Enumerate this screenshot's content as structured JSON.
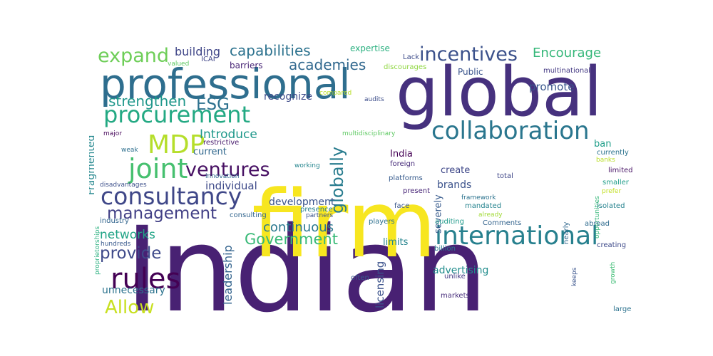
{
  "words": [
    {
      "text": "Indian",
      "color": "#482173",
      "rotate": false
    },
    {
      "text": "firm",
      "color": "#f7e620",
      "rotate": false
    },
    {
      "text": "global",
      "color": "#46317e",
      "rotate": false
    },
    {
      "text": "professional",
      "color": "#2e6e8e",
      "rotate": false
    },
    {
      "text": "international",
      "color": "#27808e",
      "rotate": false
    },
    {
      "text": "consultancy",
      "color": "#3f4788",
      "rotate": false
    },
    {
      "text": "collaboration",
      "color": "#2a768e",
      "rotate": false
    },
    {
      "text": "procurement",
      "color": "#23a983",
      "rotate": false
    },
    {
      "text": "joint",
      "color": "#46c06f",
      "rotate": false
    },
    {
      "text": "rules",
      "color": "#440154",
      "rotate": false
    },
    {
      "text": "MDP",
      "color": "#b5de2b",
      "rotate": false
    },
    {
      "text": "incentives",
      "color": "#3b518b",
      "rotate": false
    },
    {
      "text": "expand",
      "color": "#6ece58",
      "rotate": false
    },
    {
      "text": "management",
      "color": "#424086",
      "rotate": false
    },
    {
      "text": "Government",
      "color": "#38b977",
      "rotate": false
    },
    {
      "text": "ventures",
      "color": "#471063",
      "rotate": false
    },
    {
      "text": "globally",
      "color": "#287c8e",
      "rotate": true
    },
    {
      "text": "ESG",
      "color": "#2d718e",
      "rotate": false
    },
    {
      "text": "provide",
      "color": "#3e4989",
      "rotate": false
    },
    {
      "text": "Allow",
      "color": "#c8e020",
      "rotate": false
    },
    {
      "text": "strengthen",
      "color": "#1f978b",
      "rotate": false
    },
    {
      "text": "capabilities",
      "color": "#2c728e",
      "rotate": false
    },
    {
      "text": "academies",
      "color": "#31688e",
      "rotate": false
    },
    {
      "text": "Encourage",
      "color": "#35b779",
      "rotate": false
    },
    {
      "text": "continuous",
      "color": "#2a788e",
      "rotate": false
    },
    {
      "text": "leadership",
      "color": "#33638d",
      "rotate": true
    },
    {
      "text": "networks",
      "color": "#20a486",
      "rotate": false
    },
    {
      "text": "Introduce",
      "color": "#1f988b",
      "rotate": false
    },
    {
      "text": "individual",
      "color": "#3e4a89",
      "rotate": false
    },
    {
      "text": "building",
      "color": "#404688",
      "rotate": false
    },
    {
      "text": "promote",
      "color": "#39568c",
      "rotate": false
    },
    {
      "text": "Fragmented",
      "color": "#24878e",
      "rotate": true
    },
    {
      "text": "advertising",
      "color": "#228d8d",
      "rotate": false
    },
    {
      "text": "licensing",
      "color": "#3b528b",
      "rotate": true
    },
    {
      "text": "development",
      "color": "#3a538b",
      "rotate": false
    },
    {
      "text": "recognize",
      "color": "#3e4c8a",
      "rotate": false
    },
    {
      "text": "unnecessary",
      "color": "#2c738e",
      "rotate": false
    },
    {
      "text": "India",
      "color": "#440154",
      "rotate": false
    },
    {
      "text": "brands",
      "color": "#3b528b",
      "rotate": false
    },
    {
      "text": "create",
      "color": "#3f4889",
      "rotate": false
    },
    {
      "text": "limits",
      "color": "#25848e",
      "rotate": false
    },
    {
      "text": "severely",
      "color": "#375a8c",
      "rotate": true
    },
    {
      "text": "current",
      "color": "#31688e",
      "rotate": false
    },
    {
      "text": "barriers",
      "color": "#482576",
      "rotate": false
    },
    {
      "text": "expertise",
      "color": "#2ab07f",
      "rotate": false
    },
    {
      "text": "Public",
      "color": "#3a548c",
      "rotate": false
    },
    {
      "text": "ban",
      "color": "#1f9e89",
      "rotate": false
    },
    {
      "text": "Lack",
      "color": "#3e4c8a",
      "rotate": false
    },
    {
      "text": "ICAI",
      "color": "#404588",
      "rotate": false
    },
    {
      "text": "valued",
      "color": "#5ec962",
      "rotate": false
    },
    {
      "text": "discourages",
      "color": "#90d743",
      "rotate": false
    },
    {
      "text": "multinational",
      "color": "#443983",
      "rotate": false
    },
    {
      "text": "compared",
      "color": "#b8de29",
      "rotate": false
    },
    {
      "text": "audits",
      "color": "#3d4e8a",
      "rotate": false
    },
    {
      "text": "multidisciplinary",
      "color": "#5ec962",
      "rotate": false
    },
    {
      "text": "restrictive",
      "color": "#481b6d",
      "rotate": false
    },
    {
      "text": "major",
      "color": "#46075a",
      "rotate": false
    },
    {
      "text": "weak",
      "color": "#2e6f8e",
      "rotate": false
    },
    {
      "text": "innovation",
      "color": "#30698e",
      "rotate": false
    },
    {
      "text": "working",
      "color": "#25858e",
      "rotate": false
    },
    {
      "text": "foreign",
      "color": "#472c7a",
      "rotate": false
    },
    {
      "text": "platforms",
      "color": "#375b8d",
      "rotate": false
    },
    {
      "text": "total",
      "color": "#3f4788",
      "rotate": false
    },
    {
      "text": "disadvantages",
      "color": "#3c4f8a",
      "rotate": false
    },
    {
      "text": "currently",
      "color": "#2c738e",
      "rotate": false
    },
    {
      "text": "banks",
      "color": "#bade28",
      "rotate": false
    },
    {
      "text": "limited",
      "color": "#471365",
      "rotate": false
    },
    {
      "text": "smaller",
      "color": "#1f9e89",
      "rotate": false
    },
    {
      "text": "prefer",
      "color": "#c2df23",
      "rotate": false
    },
    {
      "text": "present",
      "color": "#482677",
      "rotate": false
    },
    {
      "text": "framework",
      "color": "#2c738e",
      "rotate": false
    },
    {
      "text": "consulting",
      "color": "#32658e",
      "rotate": false
    },
    {
      "text": "presence",
      "color": "#27808e",
      "rotate": false
    },
    {
      "text": "partners",
      "color": "#3a548c",
      "rotate": false
    },
    {
      "text": "mandated",
      "color": "#25838e",
      "rotate": false
    },
    {
      "text": "face",
      "color": "#39558c",
      "rotate": false
    },
    {
      "text": "already",
      "color": "#a2da37",
      "rotate": false
    },
    {
      "text": "opportunities",
      "color": "#35b779",
      "rotate": true
    },
    {
      "text": "isolated",
      "color": "#26828e",
      "rotate": false
    },
    {
      "text": "nearly",
      "color": "#31688e",
      "rotate": true
    },
    {
      "text": "industry",
      "color": "#32658e",
      "rotate": false
    },
    {
      "text": "proprietorships",
      "color": "#2ab07f",
      "rotate": true
    },
    {
      "text": "players",
      "color": "#2d708e",
      "rotate": false
    },
    {
      "text": "auditing",
      "color": "#1f9a8a",
      "rotate": false
    },
    {
      "text": "Comments",
      "color": "#33638d",
      "rotate": false
    },
    {
      "text": "abroad",
      "color": "#2f6c8e",
      "rotate": false
    },
    {
      "text": "hundreds",
      "color": "#38598c",
      "rotate": false
    },
    {
      "text": "billion",
      "color": "#2a788e",
      "rotate": false
    },
    {
      "text": "creating",
      "color": "#3e4a89",
      "rotate": false
    },
    {
      "text": "growth",
      "color": "#3dbc74",
      "rotate": true
    },
    {
      "text": "often",
      "color": "#38598c",
      "rotate": false
    },
    {
      "text": "unlike",
      "color": "#443b84",
      "rotate": false
    },
    {
      "text": "keeps",
      "color": "#3a548c",
      "rotate": true
    },
    {
      "text": "markets",
      "color": "#472d7b",
      "rotate": false
    },
    {
      "text": "large",
      "color": "#2c728e",
      "rotate": false
    }
  ]
}
